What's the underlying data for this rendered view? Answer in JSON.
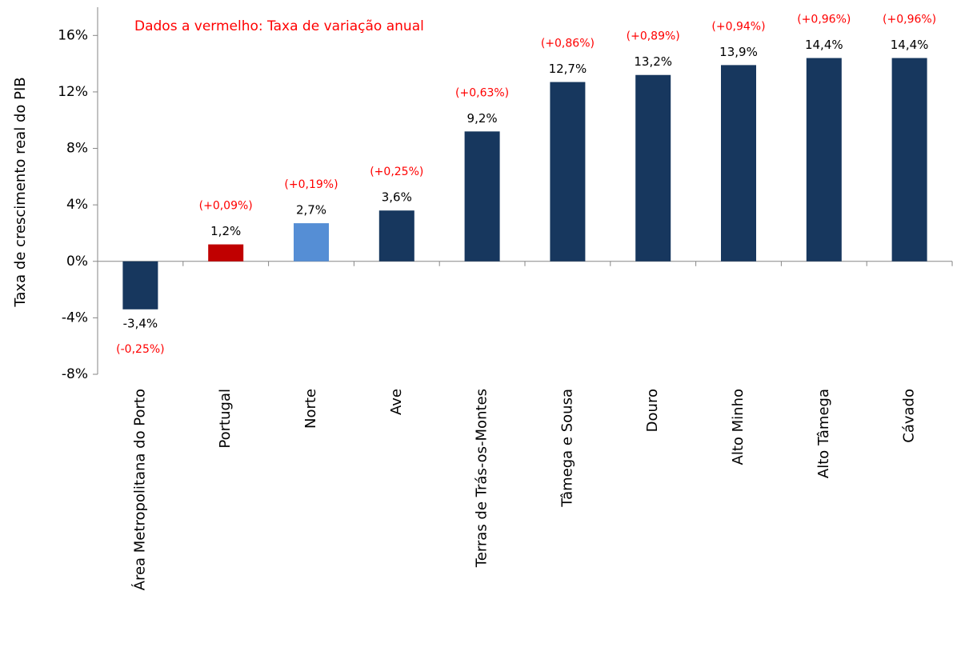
{
  "chart_data": {
    "type": "bar",
    "note": "Dados a vermelho: Taxa de variação anual",
    "y_label": "Taxa de crescimento real do PIB",
    "categories": [
      "Área Metropolitana do Porto",
      "Portugal",
      "Norte",
      "Ave",
      "Terras de Trás-os-Montes",
      "Tâmega e Sousa",
      "Douro",
      "Alto Minho",
      "Alto Tâmega",
      "Cávado"
    ],
    "values": [
      -3.4,
      1.2,
      2.7,
      3.6,
      9.2,
      12.7,
      13.2,
      13.9,
      14.4,
      14.4
    ],
    "value_labels": [
      "-3,4%",
      "1,2%",
      "2,7%",
      "3,6%",
      "9,2%",
      "12,7%",
      "13,2%",
      "13,9%",
      "14,4%",
      "14,4%"
    ],
    "annotation_labels": [
      "(-0,25%)",
      "(+0,09%)",
      "(+0,19%)",
      "(+0,25%)",
      "(+0,63%)",
      "(+0,86%)",
      "(+0,89%)",
      "(+0,94%)",
      "(+0,96%)",
      "(+0,96%)"
    ],
    "colors": [
      "#17375e",
      "#c00000",
      "#558ed5",
      "#17375e",
      "#17375e",
      "#17375e",
      "#17375e",
      "#17375e",
      "#17375e",
      "#17375e"
    ],
    "annotation_color": "#ff0000",
    "ylim": [
      -8,
      18
    ],
    "yticks": [
      {
        "value": -8,
        "label": "-8%"
      },
      {
        "value": -4,
        "label": "-4%"
      },
      {
        "value": 0,
        "label": "0%"
      },
      {
        "value": 4,
        "label": "4%"
      },
      {
        "value": 8,
        "label": "8%"
      },
      {
        "value": 12,
        "label": "12%"
      },
      {
        "value": 16,
        "label": "16%"
      }
    ],
    "grid": false
  }
}
